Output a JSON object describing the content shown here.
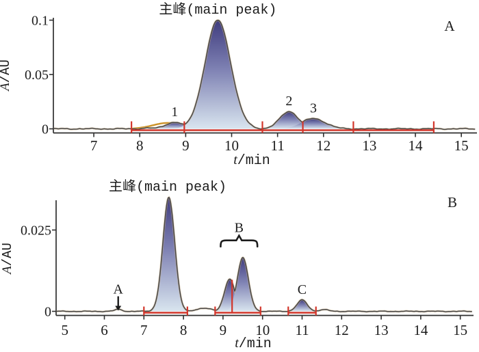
{
  "figure": {
    "background": "#ffffff",
    "text_color": "#1c1c1c",
    "axis_color": "#2e2e2e",
    "trace_color": "#474747",
    "trace_halo_color": "#cdb48e",
    "integration_color": "#d2352a",
    "orange_overlay_color": "#cc9227",
    "peak_gradient_top": "#3f3c7e",
    "peak_gradient_mid": "#7e81b3",
    "peak_gradient_bottom": "#d9e5ef"
  },
  "chart_data": [
    {
      "type": "area",
      "panel_letter": "A",
      "title": "主峰(main peak)",
      "title_anchor_t": 9.7,
      "xlabel": "t/min",
      "ylabel": "A/AU",
      "xlim": [
        6.12,
        15.31
      ],
      "ylim": [
        0,
        0.105
      ],
      "xticks": [
        7,
        8,
        9,
        10,
        11,
        12,
        13,
        14,
        15
      ],
      "yticks": [
        {
          "value": 0,
          "label": "0"
        },
        {
          "value": 0.05,
          "label": "0.05"
        },
        {
          "value": 0.1,
          "label": "0.1"
        }
      ],
      "peaks": [
        {
          "id": "impurity-peak-1",
          "t": 8.76,
          "height": 0.006,
          "sigma": 0.2,
          "label": "1"
        },
        {
          "id": "main-peak",
          "t": 9.7,
          "height": 0.1,
          "sigma": 0.28
        },
        {
          "id": "impurity-peak-2",
          "t": 11.25,
          "height": 0.016,
          "sigma": 0.2,
          "label": "2"
        },
        {
          "id": "impurity-peak-3",
          "t": 11.78,
          "height": 0.0095,
          "sigma": 0.26,
          "label": "3"
        }
      ],
      "baseline_bumps": [
        {
          "t": 8.2,
          "height": 0.0007,
          "sigma": 0.15
        }
      ],
      "orange_overlay": {
        "t": 8.62,
        "height": 0.0055,
        "sigma": 0.33,
        "t_start": 7.85,
        "t_end": 9.08
      },
      "integration": {
        "segments": [
          [
            7.82,
            14.4
          ]
        ],
        "tick_positions": [
          7.82,
          8.97,
          10.67,
          11.55,
          12.65,
          14.4
        ],
        "dividers": []
      },
      "annotations": {
        "arrow": null,
        "brace": null
      }
    },
    {
      "type": "area",
      "panel_letter": "B",
      "title": "主峰(main peak)",
      "title_anchor_t": 7.6,
      "xlabel": "t/min",
      "ylabel": "A/AU",
      "xlim": [
        4.78,
        15.3
      ],
      "ylim": [
        0,
        0.0355
      ],
      "xticks": [
        5,
        6,
        7,
        8,
        9,
        10,
        11,
        12,
        13,
        14,
        15
      ],
      "yticks": [
        {
          "value": 0,
          "label": "0"
        },
        {
          "value": 0.025,
          "label": "0.025"
        }
      ],
      "peaks": [
        {
          "id": "main-peak",
          "t": 7.63,
          "height": 0.035,
          "sigma": 0.15
        },
        {
          "id": "peak-b1",
          "t": 9.17,
          "height": 0.01,
          "sigma": 0.13
        },
        {
          "id": "peak-b2",
          "t": 9.5,
          "height": 0.0165,
          "sigma": 0.14
        },
        {
          "id": "peak-c",
          "t": 11.0,
          "height": 0.0035,
          "sigma": 0.13,
          "label": "C"
        }
      ],
      "baseline_bumps": [
        {
          "t": 6.35,
          "height": 0.0006,
          "sigma": 0.09
        },
        {
          "t": 8.55,
          "height": 0.001,
          "sigma": 0.18
        },
        {
          "t": 11.55,
          "height": 0.0005,
          "sigma": 0.12
        }
      ],
      "orange_overlay": null,
      "integration": {
        "segments": [
          [
            7.0,
            8.1
          ],
          [
            8.8,
            9.95
          ],
          [
            10.65,
            11.35
          ]
        ],
        "tick_positions": [
          7.0,
          8.1,
          8.8,
          9.95,
          10.65,
          11.35
        ],
        "dividers": [
          {
            "t": 9.23,
            "height": 0.0097
          }
        ]
      },
      "annotations": {
        "arrow": {
          "label": "A",
          "t": 6.35
        },
        "brace": {
          "label": "B",
          "t_start": 8.94,
          "t_end": 9.87,
          "y_value": 0.0218
        }
      }
    }
  ]
}
